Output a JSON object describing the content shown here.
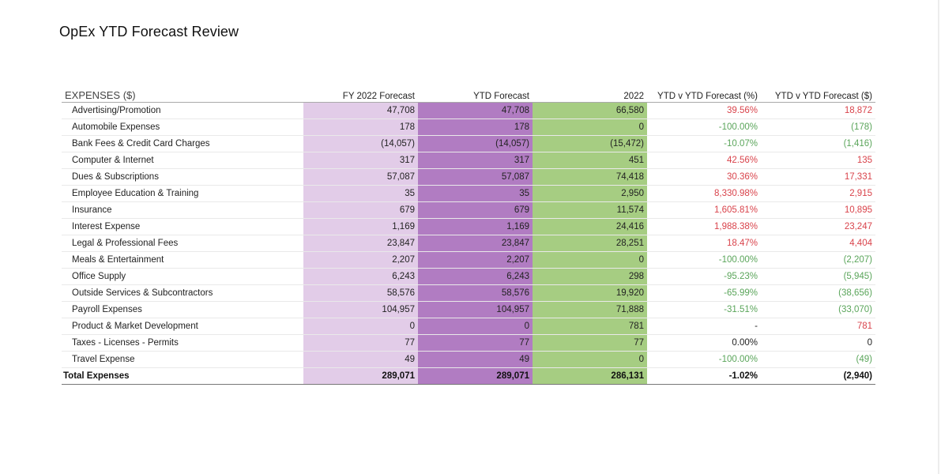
{
  "title": "OpEx YTD Forecast Review",
  "columns": {
    "label": "EXPENSES ($)",
    "fy_forecast": "FY 2022 Forecast",
    "ytd_forecast": "YTD Forecast",
    "actual_2022": "2022",
    "var_pct": "YTD v YTD Forecast (%)",
    "var_usd": "YTD v YTD Forecast ($)"
  },
  "rows": [
    {
      "label": "Advertising/Promotion",
      "fy": "47,708",
      "ytd": "47,708",
      "actual": "66,580",
      "pct": "39.56%",
      "usd": "18,872",
      "pct_tone": "pos-bad",
      "usd_tone": "pos-bad"
    },
    {
      "label": "Automobile Expenses",
      "fy": "178",
      "ytd": "178",
      "actual": "0",
      "pct": "-100.00%",
      "usd": "(178)",
      "pct_tone": "neg-good",
      "usd_tone": "neg-good"
    },
    {
      "label": "Bank Fees & Credit Card Charges",
      "fy": "(14,057)",
      "ytd": "(14,057)",
      "actual": "(15,472)",
      "pct": "-10.07%",
      "usd": "(1,416)",
      "pct_tone": "neg-good",
      "usd_tone": "neg-good"
    },
    {
      "label": "Computer & Internet",
      "fy": "317",
      "ytd": "317",
      "actual": "451",
      "pct": "42.56%",
      "usd": "135",
      "pct_tone": "pos-bad",
      "usd_tone": "pos-bad"
    },
    {
      "label": "Dues & Subscriptions",
      "fy": "57,087",
      "ytd": "57,087",
      "actual": "74,418",
      "pct": "30.36%",
      "usd": "17,331",
      "pct_tone": "pos-bad",
      "usd_tone": "pos-bad"
    },
    {
      "label": "Employee Education & Training",
      "fy": "35",
      "ytd": "35",
      "actual": "2,950",
      "pct": "8,330.98%",
      "usd": "2,915",
      "pct_tone": "pos-bad",
      "usd_tone": "pos-bad"
    },
    {
      "label": "Insurance",
      "fy": "679",
      "ytd": "679",
      "actual": "11,574",
      "pct": "1,605.81%",
      "usd": "10,895",
      "pct_tone": "pos-bad",
      "usd_tone": "pos-bad"
    },
    {
      "label": "Interest Expense",
      "fy": "1,169",
      "ytd": "1,169",
      "actual": "24,416",
      "pct": "1,988.38%",
      "usd": "23,247",
      "pct_tone": "pos-bad",
      "usd_tone": "pos-bad"
    },
    {
      "label": "Legal & Professional Fees",
      "fy": "23,847",
      "ytd": "23,847",
      "actual": "28,251",
      "pct": "18.47%",
      "usd": "4,404",
      "pct_tone": "pos-bad",
      "usd_tone": "pos-bad"
    },
    {
      "label": "Meals & Entertainment",
      "fy": "2,207",
      "ytd": "2,207",
      "actual": "0",
      "pct": "-100.00%",
      "usd": "(2,207)",
      "pct_tone": "neg-good",
      "usd_tone": "neg-good"
    },
    {
      "label": "Office Supply",
      "fy": "6,243",
      "ytd": "6,243",
      "actual": "298",
      "pct": "-95.23%",
      "usd": "(5,945)",
      "pct_tone": "neg-good",
      "usd_tone": "neg-good"
    },
    {
      "label": "Outside Services & Subcontractors",
      "fy": "58,576",
      "ytd": "58,576",
      "actual": "19,920",
      "pct": "-65.99%",
      "usd": "(38,656)",
      "pct_tone": "neg-good",
      "usd_tone": "neg-good"
    },
    {
      "label": "Payroll Expenses",
      "fy": "104,957",
      "ytd": "104,957",
      "actual": "71,888",
      "pct": "-31.51%",
      "usd": "(33,070)",
      "pct_tone": "neg-good",
      "usd_tone": "neg-good"
    },
    {
      "label": "Product & Market Development",
      "fy": "0",
      "ytd": "0",
      "actual": "781",
      "pct": "-",
      "usd": "781",
      "pct_tone": "neutral",
      "usd_tone": "pos-bad"
    },
    {
      "label": "Taxes - Licenses - Permits",
      "fy": "77",
      "ytd": "77",
      "actual": "77",
      "pct": "0.00%",
      "usd": "0",
      "pct_tone": "neutral",
      "usd_tone": "neutral"
    },
    {
      "label": "Travel Expense",
      "fy": "49",
      "ytd": "49",
      "actual": "0",
      "pct": "-100.00%",
      "usd": "(49)",
      "pct_tone": "neg-good",
      "usd_tone": "neg-good"
    }
  ],
  "total": {
    "label": "Total Expenses",
    "fy": "289,071",
    "ytd": "289,071",
    "actual": "286,131",
    "pct": "-1.02%",
    "usd": "(2,940)",
    "pct_tone": "neg-good",
    "usd_tone": "neg-good"
  },
  "colors": {
    "fy_fill": "#e2cce8",
    "ytd_fill": "#b17cc2",
    "actual_fill": "#a6cd82",
    "unfavorable": "#d9434b",
    "favorable": "#5aa55a"
  }
}
